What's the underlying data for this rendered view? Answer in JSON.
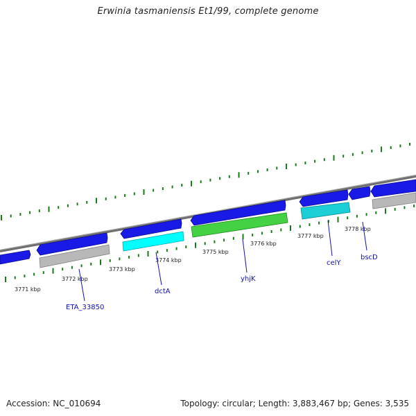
{
  "title": "Erwinia tasmaniensis Et1/99, complete genome",
  "footer": {
    "accession": "Accession: NC_010694",
    "summary": "Topology: circular; Length: 3,883,467 bp; Genes: 3,535"
  },
  "colors": {
    "forward_gene": "#1a1ae6",
    "rna_gray": "#b8b8b8",
    "cyan": "#00ffff",
    "teal": "#1ccfd6",
    "green": "#44d244",
    "tick": "#1a7a1a",
    "backbone": "#888888",
    "label": "#1010b0"
  },
  "scale_labels": [
    "3771 kbp",
    "3772 kbp",
    "3773 kbp",
    "3774 kbp",
    "3775 kbp",
    "3776 kbp",
    "3777 kbp",
    "3778 kbp"
  ],
  "genes": [
    {
      "name": "ETA_33850",
      "color_key": "rna_gray"
    },
    {
      "name": "dctA",
      "color_key": "cyan"
    },
    {
      "name": "yhjK",
      "color_key": "green"
    },
    {
      "name": "celY",
      "color_key": "teal"
    },
    {
      "name": "bscD",
      "color_key": "rna_gray"
    }
  ]
}
